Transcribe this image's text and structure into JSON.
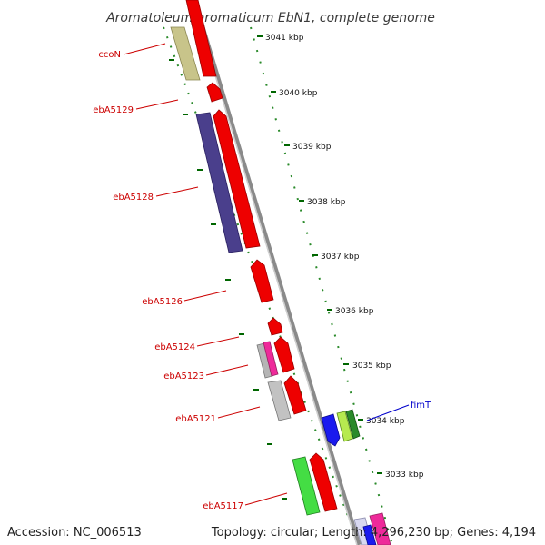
{
  "title": "Aromatoleum aromaticum EbN1, complete genome",
  "footer": {
    "accession": "Accession: NC_006513",
    "topology": "Topology: circular; Length: 4,296,230 bp; Genes: 4,194"
  },
  "colors": {
    "label_red": "#cc0000",
    "label_blue": "#0000cc",
    "tick_green": "#006600",
    "backbone": "#8a8a8a"
  },
  "kbp_labels": [
    "3041 kbp",
    "3040 kbp",
    "3039 kbp",
    "3038 kbp",
    "3037 kbp",
    "3036 kbp",
    "3035 kbp",
    "3034 kbp",
    "3033 kbp"
  ],
  "gene_labels": [
    {
      "name": "ccoN",
      "color": "red"
    },
    {
      "name": "ebA5129",
      "color": "red"
    },
    {
      "name": "ebA5128",
      "color": "red"
    },
    {
      "name": "ebA5126",
      "color": "red"
    },
    {
      "name": "ebA5124",
      "color": "red"
    },
    {
      "name": "ebA5123",
      "color": "red"
    },
    {
      "name": "ebA5121",
      "color": "red"
    },
    {
      "name": "ebA5117",
      "color": "red"
    },
    {
      "name": "fimT",
      "color": "blue"
    }
  ]
}
